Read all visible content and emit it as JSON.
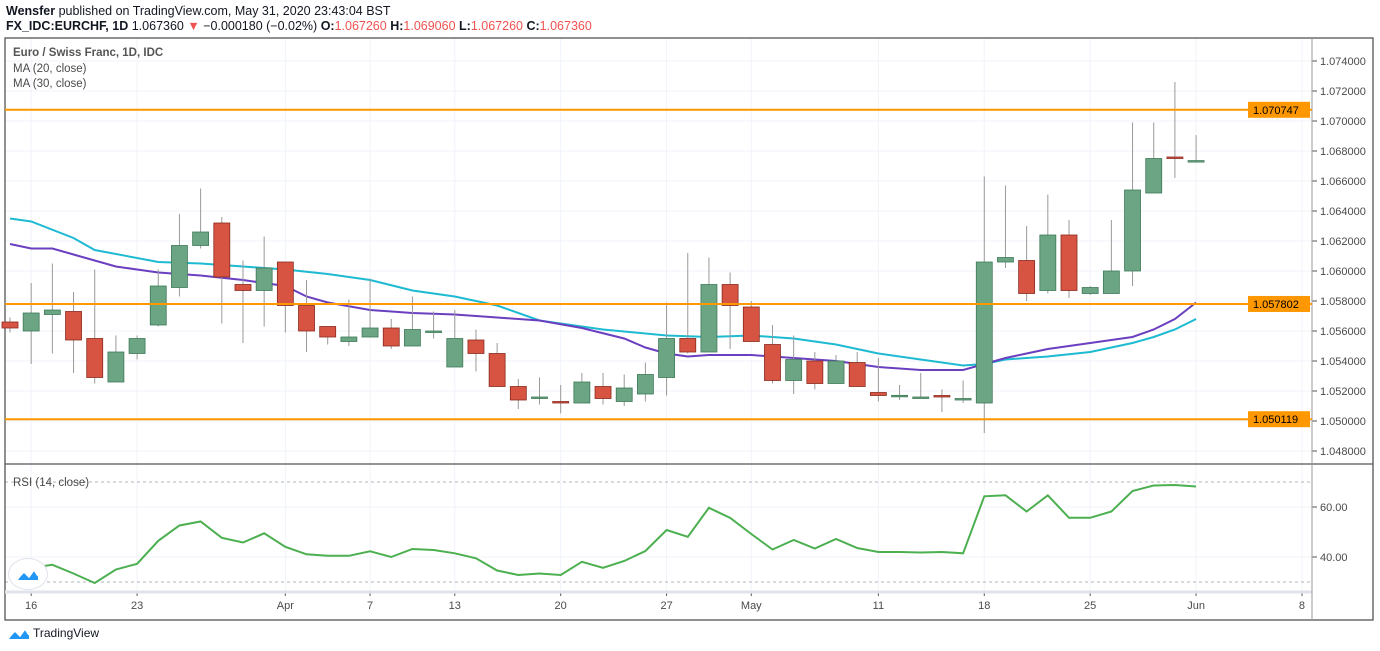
{
  "header": {
    "author": "Wensfer",
    "published": "published on TradingView.com, May 31, 2020 23:43:04 BST",
    "symbol": "FX_IDC:EURCHF, 1D",
    "last": "1.067360",
    "change": "−0.000180 (−0.02%)",
    "o_label": "O:",
    "o": "1.067260",
    "h_label": "H:",
    "h": "1.069060",
    "l_label": "L:",
    "l": "1.067260",
    "c_label": "C:",
    "c": "1.067360"
  },
  "legend": {
    "title": "Euro / Swiss Franc, 1D, IDC",
    "ma20": "MA (20, close)",
    "ma30": "MA (30, close)",
    "rsi": "RSI (14, close)"
  },
  "footer": {
    "brand": "TradingView"
  },
  "colors": {
    "up": "#6ba583",
    "down": "#d75442",
    "ma20": "#6a3fc0",
    "ma30": "#1dbad2",
    "hline": "#ff9800",
    "rsi": "#4caf50"
  },
  "chart_data": [
    {
      "type": "candlestick",
      "title": "Euro / Swiss Franc, 1D, IDC",
      "ylim": [
        1.0472,
        1.0755
      ],
      "y_ticks": [
        "1.048000",
        "1.050000",
        "1.052000",
        "1.054000",
        "1.056000",
        "1.058000",
        "1.060000",
        "1.062000",
        "1.064000",
        "1.066000",
        "1.068000",
        "1.070000",
        "1.072000",
        "1.074000"
      ],
      "x_ticks": [
        {
          "i": 1,
          "label": "16"
        },
        {
          "i": 6,
          "label": "23"
        },
        {
          "i": 13,
          "label": "Apr"
        },
        {
          "i": 17,
          "label": "7"
        },
        {
          "i": 21,
          "label": "13"
        },
        {
          "i": 26,
          "label": "20"
        },
        {
          "i": 31,
          "label": "27"
        },
        {
          "i": 35,
          "label": "May"
        },
        {
          "i": 41,
          "label": "11"
        },
        {
          "i": 46,
          "label": "18"
        },
        {
          "i": 51,
          "label": "25"
        },
        {
          "i": 56,
          "label": "Jun"
        },
        {
          "i": 61,
          "label": "8"
        }
      ],
      "horizontal_lines": [
        {
          "value": 1.070747,
          "label": "1.070747"
        },
        {
          "value": 1.057802,
          "label": "1.057802"
        },
        {
          "value": 1.050119,
          "label": "1.050119"
        }
      ],
      "ohlc": [
        [
          1.0566,
          1.0569,
          1.0559,
          1.0562
        ],
        [
          1.056,
          1.0592,
          1.0538,
          1.0572
        ],
        [
          1.0571,
          1.0605,
          1.0545,
          1.0574
        ],
        [
          1.0573,
          1.0586,
          1.0532,
          1.0554
        ],
        [
          1.0555,
          1.0601,
          1.0525,
          1.0529
        ],
        [
          1.0526,
          1.0557,
          1.0526,
          1.0546
        ],
        [
          1.0545,
          1.0557,
          1.0541,
          1.0555
        ],
        [
          1.0564,
          1.0601,
          1.0563,
          1.059
        ],
        [
          1.0589,
          1.0638,
          1.0583,
          1.0617
        ],
        [
          1.0617,
          1.0655,
          1.0615,
          1.0626
        ],
        [
          1.0632,
          1.0636,
          1.0565,
          1.0596
        ],
        [
          1.0591,
          1.0607,
          1.0552,
          1.0587
        ],
        [
          1.0587,
          1.0623,
          1.0563,
          1.0602
        ],
        [
          1.0606,
          1.0606,
          1.0559,
          1.0577
        ],
        [
          1.0577,
          1.0594,
          1.0546,
          1.056
        ],
        [
          1.0563,
          1.0563,
          1.0551,
          1.0556
        ],
        [
          1.0553,
          1.0581,
          1.055,
          1.0556
        ],
        [
          1.0556,
          1.0595,
          1.0556,
          1.0562
        ],
        [
          1.0562,
          1.0568,
          1.0548,
          1.055
        ],
        [
          1.055,
          1.0583,
          1.055,
          1.0561
        ],
        [
          1.0559,
          1.0573,
          1.0555,
          1.056
        ],
        [
          1.0536,
          1.0574,
          1.0536,
          1.0555
        ],
        [
          1.0554,
          1.0561,
          1.0533,
          1.0545
        ],
        [
          1.0545,
          1.0552,
          1.0523,
          1.0523
        ],
        [
          1.0523,
          1.0528,
          1.0508,
          1.0514
        ],
        [
          1.0515,
          1.0529,
          1.0511,
          1.0516
        ],
        [
          1.0513,
          1.0524,
          1.0505,
          1.0512
        ],
        [
          1.0512,
          1.0532,
          1.0512,
          1.0526
        ],
        [
          1.0523,
          1.0532,
          1.0511,
          1.0515
        ],
        [
          1.0513,
          1.0531,
          1.051,
          1.0522
        ],
        [
          1.0518,
          1.0539,
          1.0513,
          1.0531
        ],
        [
          1.0529,
          1.0579,
          1.0517,
          1.0555
        ],
        [
          1.0555,
          1.0612,
          1.0545,
          1.0546
        ],
        [
          1.0546,
          1.0609,
          1.0546,
          1.0591
        ],
        [
          1.0591,
          1.0599,
          1.0548,
          1.0577
        ],
        [
          1.0576,
          1.058,
          1.0553,
          1.0553
        ],
        [
          1.0551,
          1.0564,
          1.0525,
          1.0527
        ],
        [
          1.0527,
          1.0557,
          1.0518,
          1.0541
        ],
        [
          1.054,
          1.0546,
          1.0521,
          1.0525
        ],
        [
          1.0525,
          1.0544,
          1.0525,
          1.054
        ],
        [
          1.0539,
          1.0546,
          1.0523,
          1.0523
        ],
        [
          1.0519,
          1.0542,
          1.0513,
          1.0517
        ],
        [
          1.0517,
          1.0524,
          1.0514,
          1.05171
        ],
        [
          1.0516,
          1.0532,
          1.0516,
          1.0516
        ],
        [
          1.0517,
          1.0521,
          1.0506,
          1.0516
        ],
        [
          1.0515,
          1.0527,
          1.0512,
          1.0515
        ],
        [
          1.0512,
          1.0663,
          1.0492,
          1.0606
        ],
        [
          1.0606,
          1.0657,
          1.0602,
          1.0609
        ],
        [
          1.0607,
          1.063,
          1.058,
          1.0585
        ],
        [
          1.0587,
          1.0651,
          1.0585,
          1.0624
        ],
        [
          1.0624,
          1.0634,
          1.0582,
          1.0587
        ],
        [
          1.0585,
          1.059,
          1.0584,
          1.0589
        ],
        [
          1.0585,
          1.0634,
          1.0585,
          1.06
        ],
        [
          1.06,
          1.0699,
          1.059,
          1.0654
        ],
        [
          1.0652,
          1.0699,
          1.0652,
          1.0675
        ],
        [
          1.0676,
          1.0726,
          1.0662,
          1.06755
        ],
        [
          1.06726,
          1.06906,
          1.06726,
          1.06736
        ]
      ],
      "ma20": [
        [
          0,
          1.0618
        ],
        [
          1,
          1.0615
        ],
        [
          2,
          1.0615
        ],
        [
          3,
          1.0611
        ],
        [
          5,
          1.0603
        ],
        [
          6,
          1.0601
        ],
        [
          7,
          1.0599
        ],
        [
          9,
          1.0597
        ],
        [
          11,
          1.0594
        ],
        [
          13,
          1.059
        ],
        [
          14,
          1.0583
        ],
        [
          15,
          1.0579
        ],
        [
          17,
          1.0574
        ],
        [
          19,
          1.0572
        ],
        [
          21,
          1.0571
        ],
        [
          23,
          1.0569
        ],
        [
          25,
          1.0567
        ],
        [
          27,
          1.0562
        ],
        [
          29,
          1.0555
        ],
        [
          30,
          1.0549
        ],
        [
          31,
          1.0545
        ],
        [
          32,
          1.0543
        ],
        [
          33,
          1.0544
        ],
        [
          35,
          1.0544
        ],
        [
          36,
          1.0543
        ],
        [
          37,
          1.0542
        ],
        [
          39,
          1.054
        ],
        [
          41,
          1.0536
        ],
        [
          43,
          1.0534
        ],
        [
          45,
          1.0534
        ],
        [
          46,
          1.0538
        ],
        [
          47,
          1.0542
        ],
        [
          48,
          1.0545
        ],
        [
          49,
          1.0548
        ],
        [
          50,
          1.055
        ],
        [
          51,
          1.0552
        ],
        [
          52,
          1.0554
        ],
        [
          53,
          1.0556
        ],
        [
          54,
          1.0561
        ],
        [
          55,
          1.0568
        ],
        [
          56,
          1.0579
        ]
      ],
      "ma30": [
        [
          0,
          1.0635
        ],
        [
          1,
          1.0633
        ],
        [
          3,
          1.0622
        ],
        [
          4,
          1.0614
        ],
        [
          7,
          1.0606
        ],
        [
          9,
          1.0605
        ],
        [
          11,
          1.0603
        ],
        [
          13,
          1.0601
        ],
        [
          15,
          1.0598
        ],
        [
          17,
          1.0594
        ],
        [
          19,
          1.0587
        ],
        [
          21,
          1.0583
        ],
        [
          23,
          1.0577
        ],
        [
          25,
          1.0567
        ],
        [
          28,
          1.0561
        ],
        [
          31,
          1.0557
        ],
        [
          33,
          1.0556
        ],
        [
          35,
          1.0557
        ],
        [
          37,
          1.0555
        ],
        [
          39,
          1.0551
        ],
        [
          41,
          1.0545
        ],
        [
          43,
          1.0541
        ],
        [
          45,
          1.0537
        ],
        [
          46,
          1.0538
        ],
        [
          47,
          1.0541
        ],
        [
          49,
          1.0543
        ],
        [
          51,
          1.0546
        ],
        [
          53,
          1.0552
        ],
        [
          54,
          1.0556
        ],
        [
          55,
          1.0561
        ],
        [
          56,
          1.0568
        ]
      ]
    },
    {
      "type": "line",
      "title": "RSI (14, close)",
      "y_ticks": [
        "40.00",
        "60.00"
      ],
      "bands": [
        30,
        70
      ],
      "values": [
        33.4,
        35.7,
        36.9,
        33.4,
        29.6,
        35.0,
        37.3,
        46.5,
        52.6,
        54.2,
        47.7,
        45.8,
        49.5,
        44.1,
        41.1,
        40.5,
        40.5,
        42.3,
        40.0,
        43.2,
        42.8,
        41.5,
        39.5,
        34.6,
        32.8,
        33.4,
        32.8,
        38.1,
        35.7,
        38.4,
        42.4,
        50.8,
        48.1,
        59.7,
        55.7,
        49.2,
        43.0,
        46.8,
        43.4,
        47.2,
        43.6,
        42.0,
        42.0,
        41.8,
        42.0,
        41.5,
        64.3,
        64.7,
        58.2,
        64.7,
        55.7,
        55.7,
        58.2,
        66.4,
        68.6,
        68.8,
        68.2
      ]
    }
  ]
}
